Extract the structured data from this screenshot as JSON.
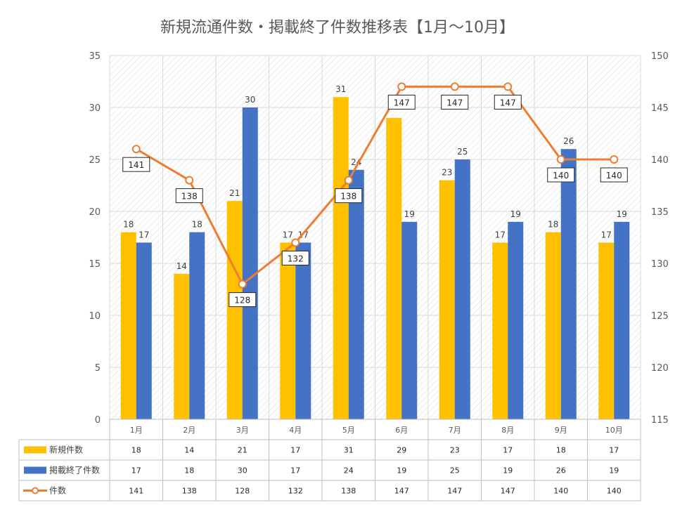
{
  "chart_data": {
    "type": "bar",
    "title": "新規流通件数・掲載終了件数推移表【1月～10月】",
    "categories": [
      "1月",
      "2月",
      "3月",
      "4月",
      "5月",
      "6月",
      "7月",
      "8月",
      "9月",
      "10月"
    ],
    "series": [
      {
        "name": "新規件数",
        "type": "bar",
        "axis": "left",
        "color": "#FFC000",
        "values": [
          18,
          14,
          21,
          17,
          31,
          29,
          23,
          17,
          18,
          17
        ]
      },
      {
        "name": "掲載終了件数",
        "type": "bar",
        "axis": "left",
        "color": "#4472C4",
        "values": [
          17,
          18,
          30,
          17,
          24,
          19,
          25,
          19,
          26,
          19
        ]
      },
      {
        "name": "件数",
        "type": "line",
        "axis": "right",
        "color": "#ED7D31",
        "values": [
          141,
          138,
          128,
          132,
          138,
          147,
          147,
          147,
          140,
          140
        ]
      }
    ],
    "y_left": {
      "min": 0,
      "max": 35,
      "step": 5
    },
    "y_right": {
      "min": 115,
      "max": 150,
      "step": 5
    },
    "bar_data_labels": [
      [
        18,
        14,
        21,
        17,
        31,
        null,
        23,
        17,
        18,
        17
      ],
      [
        17,
        18,
        30,
        17,
        24,
        19,
        25,
        19,
        26,
        19
      ]
    ],
    "grid": true,
    "data_table": true,
    "legend": "in-data-table"
  }
}
